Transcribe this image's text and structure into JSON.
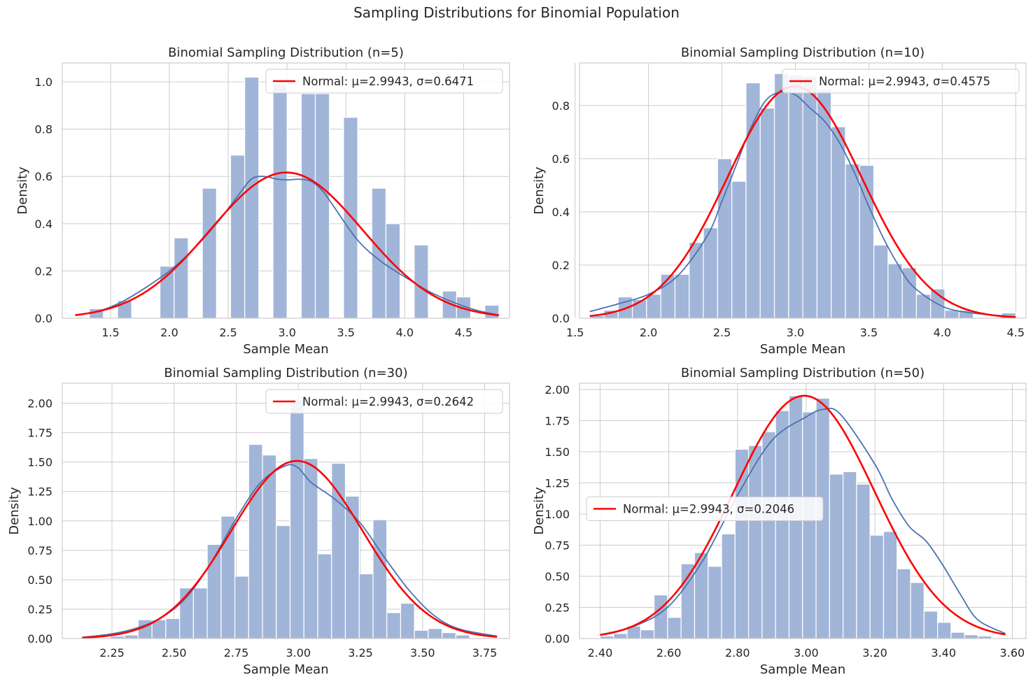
{
  "figure": {
    "title": "Sampling Distributions for Binomial Population"
  },
  "colors": {
    "bars": "#a1b5d8",
    "kde": "#4c72b0",
    "normal": "#ff0000",
    "grid": "#cccccc",
    "axes": "#cccccc"
  },
  "chart_data": [
    {
      "type": "bar",
      "title": "Binomial Sampling Distribution (n=5)",
      "xlabel": "Sample Mean",
      "ylabel": "Density",
      "xlim": [
        1.09,
        4.89
      ],
      "ylim": [
        0,
        1.08
      ],
      "xticks": [
        1.5,
        2.0,
        2.5,
        3.0,
        3.5,
        4.0,
        4.5
      ],
      "yticks": [
        0.0,
        0.2,
        0.4,
        0.6,
        0.8,
        1.0
      ],
      "legend": {
        "label": "Normal: μ=2.9943, σ=0.6471",
        "position": "top-right"
      },
      "normal": {
        "mu": 2.9943,
        "sigma": 0.6471,
        "x_range": [
          1.2,
          4.8
        ]
      },
      "bins": {
        "start": 1.2,
        "width": 0.12
      },
      "values": [
        0.0,
        0.04,
        0.0,
        0.075,
        0.0,
        0.0,
        0.22,
        0.34,
        0.0,
        0.55,
        0.0,
        0.69,
        1.02,
        0.0,
        0.99,
        0.0,
        0.95,
        0.95,
        0.0,
        0.85,
        0.0,
        0.55,
        0.4,
        0.0,
        0.31,
        0.0,
        0.115,
        0.09,
        0.0,
        0.055
      ],
      "kde": {
        "x": [
          1.2,
          1.4,
          1.6,
          1.8,
          2.0,
          2.2,
          2.4,
          2.6,
          2.7,
          2.8,
          2.9,
          3.0,
          3.1,
          3.2,
          3.3,
          3.4,
          3.6,
          3.8,
          4.0,
          4.2,
          4.4,
          4.6,
          4.8
        ],
        "y": [
          0.013,
          0.03,
          0.07,
          0.13,
          0.2,
          0.29,
          0.4,
          0.53,
          0.59,
          0.6,
          0.59,
          0.585,
          0.588,
          0.58,
          0.54,
          0.47,
          0.33,
          0.24,
          0.175,
          0.115,
          0.07,
          0.035,
          0.013
        ]
      }
    },
    {
      "type": "bar",
      "title": "Binomial Sampling Distribution (n=10)",
      "xlabel": "Sample Mean",
      "ylabel": "Density",
      "xlim": [
        1.53,
        4.57
      ],
      "ylim": [
        0,
        0.96
      ],
      "xticks": [
        1.5,
        2.0,
        2.5,
        3.0,
        3.5,
        4.0,
        4.5
      ],
      "yticks": [
        0.0,
        0.2,
        0.4,
        0.6,
        0.8
      ],
      "legend": {
        "label": "Normal: μ=2.9943, σ=0.4575",
        "position": "top-right"
      },
      "normal": {
        "mu": 2.9943,
        "sigma": 0.4575,
        "x_range": [
          1.6,
          4.5
        ]
      },
      "bins": {
        "start": 1.6,
        "width": 0.0967
      },
      "values": [
        0.01,
        0.03,
        0.08,
        0.07,
        0.09,
        0.165,
        0.165,
        0.285,
        0.34,
        0.6,
        0.515,
        0.885,
        0.79,
        0.92,
        0.915,
        0.91,
        0.86,
        0.72,
        0.58,
        0.575,
        0.275,
        0.205,
        0.19,
        0.09,
        0.11,
        0.03,
        0.03,
        0.0,
        0.0,
        0.02
      ],
      "kde": {
        "x": [
          1.6,
          1.8,
          2.0,
          2.2,
          2.4,
          2.5,
          2.6,
          2.7,
          2.8,
          2.9,
          3.0,
          3.1,
          3.2,
          3.3,
          3.4,
          3.5,
          3.6,
          3.7,
          3.8,
          4.0,
          4.2,
          4.5
        ],
        "y": [
          0.025,
          0.055,
          0.09,
          0.16,
          0.31,
          0.44,
          0.58,
          0.72,
          0.82,
          0.85,
          0.84,
          0.79,
          0.74,
          0.66,
          0.55,
          0.42,
          0.3,
          0.2,
          0.12,
          0.045,
          0.02,
          0.005
        ]
      }
    },
    {
      "type": "bar",
      "title": "Binomial Sampling Distribution (n=30)",
      "xlabel": "Sample Mean",
      "ylabel": "Density",
      "xlim": [
        2.05,
        3.85
      ],
      "ylim": [
        0,
        2.17
      ],
      "xticks": [
        2.25,
        2.5,
        2.75,
        3.0,
        3.25,
        3.5,
        3.75
      ],
      "yticks": [
        0.0,
        0.25,
        0.5,
        0.75,
        1.0,
        1.25,
        1.5,
        1.75,
        2.0
      ],
      "legend": {
        "label": "Normal: μ=2.9943, σ=0.2642",
        "position": "top-right"
      },
      "normal": {
        "mu": 2.9943,
        "sigma": 0.2642,
        "x_range": [
          2.13,
          3.8
        ]
      },
      "bins": {
        "start": 2.133,
        "width": 0.0556
      },
      "values": [
        0.0,
        0.0,
        0.02,
        0.03,
        0.16,
        0.16,
        0.17,
        0.43,
        0.43,
        0.8,
        1.04,
        0.53,
        1.65,
        1.56,
        0.96,
        2.03,
        1.53,
        0.72,
        1.49,
        1.21,
        0.55,
        1.01,
        0.22,
        0.3,
        0.07,
        0.085,
        0.05,
        0.03
      ],
      "kde": {
        "x": [
          2.13,
          2.25,
          2.35,
          2.45,
          2.55,
          2.65,
          2.75,
          2.85,
          2.95,
          3.0,
          3.05,
          3.15,
          3.25,
          3.35,
          3.45,
          3.55,
          3.65,
          3.8
        ],
        "y": [
          0.01,
          0.04,
          0.09,
          0.18,
          0.35,
          0.65,
          1.02,
          1.33,
          1.47,
          1.45,
          1.33,
          1.18,
          0.98,
          0.68,
          0.4,
          0.19,
          0.08,
          0.02
        ]
      }
    },
    {
      "type": "bar",
      "title": "Binomial Sampling Distribution (n=50)",
      "xlabel": "Sample Mean",
      "ylabel": "Density",
      "xlim": [
        2.34,
        3.64
      ],
      "ylim": [
        0,
        2.05
      ],
      "xticks": [
        2.4,
        2.6,
        2.8,
        3.0,
        3.2,
        3.4,
        3.6
      ],
      "yticks": [
        0.0,
        0.25,
        0.5,
        0.75,
        1.0,
        1.25,
        1.5,
        1.75,
        2.0
      ],
      "legend": {
        "label": "Normal: μ=2.9943, σ=0.2046",
        "position": "center-left"
      },
      "normal": {
        "mu": 2.9943,
        "sigma": 0.2046,
        "x_range": [
          2.4,
          3.58
        ]
      },
      "bins": {
        "start": 2.4,
        "width": 0.0393
      },
      "values": [
        0.02,
        0.04,
        0.1,
        0.07,
        0.35,
        0.17,
        0.6,
        0.69,
        0.58,
        0.84,
        1.52,
        1.55,
        1.66,
        1.83,
        1.95,
        1.82,
        1.93,
        1.32,
        1.34,
        1.24,
        0.83,
        0.86,
        0.56,
        0.45,
        0.22,
        0.13,
        0.05,
        0.03,
        0.02,
        0.0
      ],
      "kde": {
        "x": [
          2.4,
          2.5,
          2.6,
          2.7,
          2.8,
          2.9,
          3.0,
          3.05,
          3.1,
          3.2,
          3.25,
          3.3,
          3.35,
          3.4,
          3.45,
          3.5,
          3.58
        ],
        "y": [
          0.03,
          0.1,
          0.26,
          0.63,
          1.15,
          1.59,
          1.78,
          1.84,
          1.8,
          1.4,
          1.12,
          0.9,
          0.78,
          0.58,
          0.35,
          0.15,
          0.04
        ]
      }
    }
  ]
}
